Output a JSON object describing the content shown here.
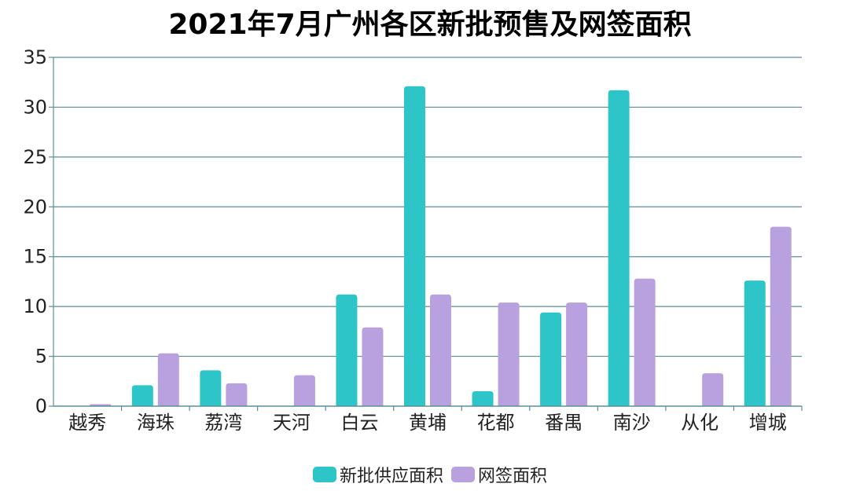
{
  "chart_data": {
    "type": "bar",
    "title": "2021年7月广州各区新批预售及网签面积",
    "categories": [
      "越秀",
      "海珠",
      "荔湾",
      "天河",
      "白云",
      "黄埔",
      "花都",
      "番禺",
      "南沙",
      "从化",
      "增城"
    ],
    "series": [
      {
        "name": "新批供应面积",
        "color": "#2ec5c9",
        "values": [
          0,
          2.1,
          3.6,
          0,
          11.2,
          32.1,
          1.5,
          9.4,
          31.7,
          0,
          12.6
        ]
      },
      {
        "name": "网签面积",
        "color": "#b8a1de",
        "values": [
          0.2,
          5.3,
          2.3,
          3.1,
          7.9,
          11.2,
          10.4,
          10.4,
          12.8,
          3.3,
          18.0
        ]
      }
    ],
    "ylim": [
      0,
      35
    ],
    "yticks": [
      "0",
      "5",
      "10",
      "15",
      "20",
      "25",
      "30",
      "35"
    ],
    "grid": true,
    "legend_position": "bottom"
  }
}
